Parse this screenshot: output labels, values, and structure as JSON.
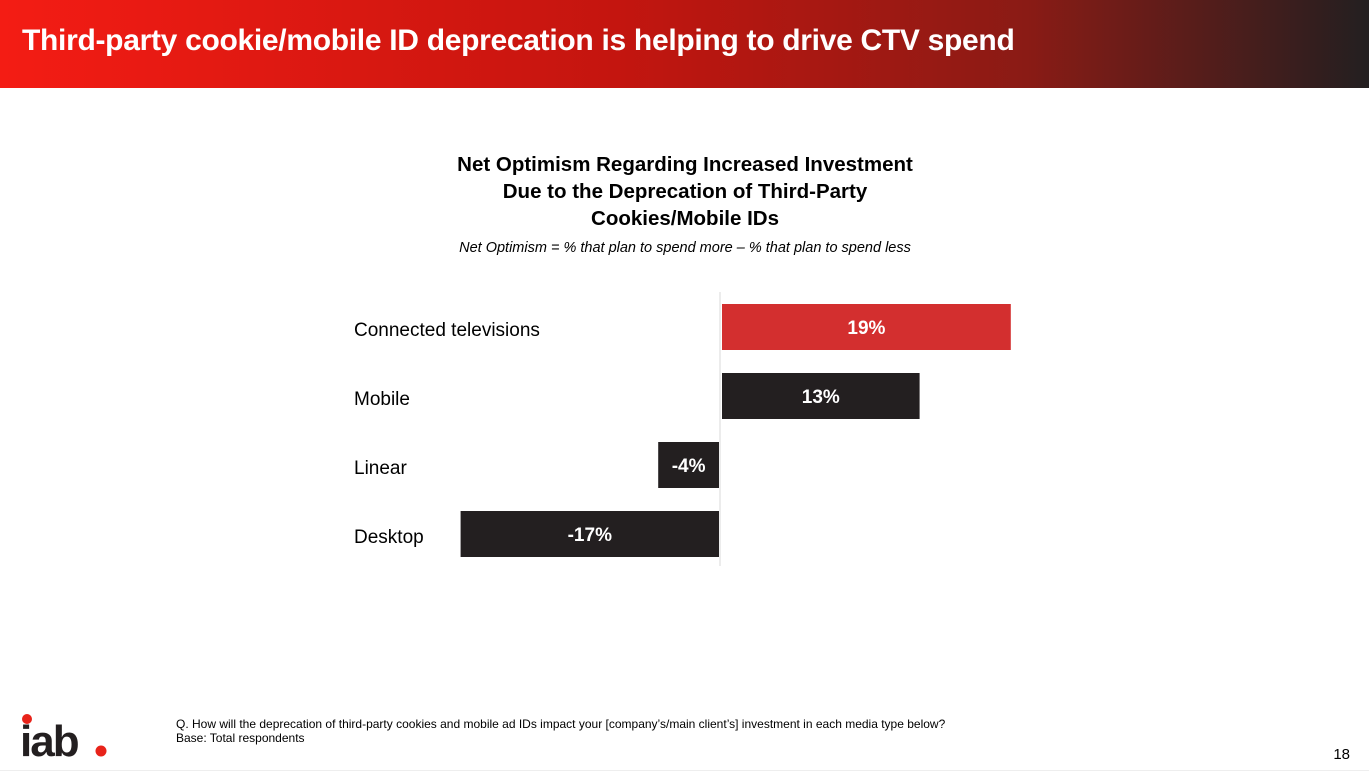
{
  "header": {
    "title": "Third-party cookie/mobile ID deprecation is helping to drive CTV spend"
  },
  "chart_data": {
    "type": "bar",
    "orientation": "horizontal",
    "title_lines": [
      "Net Optimism Regarding Increased Investment",
      "Due to the Deprecation of Third-Party",
      "Cookies/Mobile IDs"
    ],
    "subtitle": "Net Optimism = % that plan to spend more – % that plan to spend less",
    "categories": [
      "Connected televisions",
      "Mobile",
      "Linear",
      "Desktop"
    ],
    "values": [
      19,
      13,
      -4,
      -17
    ],
    "data_labels": [
      "19%",
      "13%",
      "-4%",
      "-17%"
    ],
    "unit": "%",
    "colors": [
      "#d32f2f",
      "#231f20",
      "#231f20",
      "#231f20"
    ],
    "xlim": [
      -17,
      19
    ],
    "grid": false,
    "legend": "none"
  },
  "footer": {
    "question": "Q. How will the deprecation of third-party cookies and mobile ad IDs impact your [company’s/main client’s] investment in each media type below?",
    "base": "Base: Total respondents",
    "page_number": "18",
    "logo_text": "iab."
  },
  "colors": {
    "brand_red": "#e8231a",
    "dark": "#231f20"
  }
}
